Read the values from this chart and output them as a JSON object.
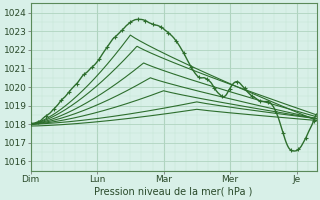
{
  "xlabel": "Pression niveau de la mer( hPa )",
  "bg_color": "#cce8d8",
  "plot_bg_color": "#d8f0e8",
  "grid_major_color": "#b0d4c0",
  "grid_minor_color": "#c4e4d0",
  "line_color": "#2d6e2d",
  "ylim": [
    1015.5,
    1024.5
  ],
  "yticks": [
    1016,
    1017,
    1018,
    1019,
    1020,
    1021,
    1022,
    1023,
    1024
  ],
  "xtick_labels": [
    "Dim",
    "Lun",
    "Mar",
    "Mer",
    "Je"
  ],
  "xtick_pos": [
    0,
    1,
    2,
    3,
    4
  ],
  "xlim": [
    0,
    4.3
  ]
}
